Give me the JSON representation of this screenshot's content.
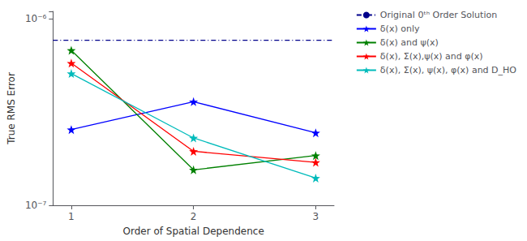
{
  "chart_data": {
    "type": "line",
    "x": [
      1,
      2,
      3
    ],
    "xlabel": "Order of Spatial Dependence",
    "ylabel": "True RMS Error",
    "log": "y",
    "xlim": [
      0.85,
      3.15
    ],
    "xticks": [
      1,
      2,
      3
    ],
    "ylim": [
      1e-07,
      1.1e-06
    ],
    "yticks": [
      {
        "value": 1e-07,
        "label": "10⁻⁷"
      },
      {
        "value": 1e-06,
        "label": "10⁻⁶"
      }
    ],
    "grid": false,
    "legend": "upper right",
    "series": [
      {
        "name": "Original 0ᵗʰ Order Solution",
        "type": "hline",
        "value": 7.7e-07,
        "color": "#00008B",
        "line_style": "dashdot"
      },
      {
        "name": "δ(x) only",
        "color": "#0000FF",
        "marker": "star",
        "line_style": "solid",
        "values": [
          2.55e-07,
          3.6e-07,
          2.45e-07
        ]
      },
      {
        "name": "δ(x) and ψ(x)",
        "color": "#008000",
        "marker": "star",
        "line_style": "solid",
        "values": [
          6.8e-07,
          1.55e-07,
          1.85e-07
        ]
      },
      {
        "name": "δ(x), Σ(x),ψ(x) and φ(x)",
        "color": "#FF0000",
        "marker": "star",
        "line_style": "solid",
        "values": [
          5.8e-07,
          1.95e-07,
          1.7e-07
        ]
      },
      {
        "name": "δ(x), Σ(x), ψ(x), φ(x) and D_HO",
        "color": "#00BBBB",
        "marker": "star",
        "line_style": "solid",
        "values": [
          5.1e-07,
          2.3e-07,
          1.4e-07
        ]
      }
    ]
  }
}
